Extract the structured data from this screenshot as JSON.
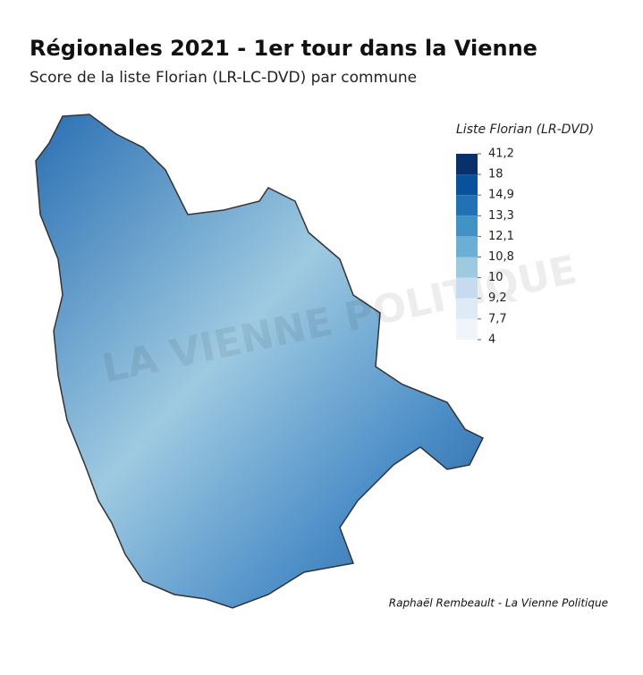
{
  "header": {
    "title": "Régionales 2021 - 1er tour dans la Vienne",
    "subtitle": "Score de la liste Florian (LR-LC-DVD) par commune"
  },
  "legend": {
    "title": "Liste Florian (LR-DVD)",
    "colors": [
      "#08306b",
      "#08519c",
      "#2171b5",
      "#4292c6",
      "#6baed6",
      "#9ecae1",
      "#c6dbef",
      "#deebf7",
      "#eff5fb"
    ],
    "ticks": [
      {
        "value": 41.2,
        "label": "41,2"
      },
      18,
      {
        "value": 14.9,
        "label": "14,9"
      },
      {
        "value": 13.3,
        "label": "13,3"
      },
      {
        "value": 12.1,
        "label": "12,1"
      },
      {
        "value": 10.8,
        "label": "10,8"
      },
      10,
      {
        "value": 9.2,
        "label": "9,2"
      },
      {
        "value": 7.7,
        "label": "7,7"
      },
      4
    ]
  },
  "watermark": "LA VIENNE POLITIQUE",
  "credit": "Raphaël Rembeault - La Vienne Politique"
}
